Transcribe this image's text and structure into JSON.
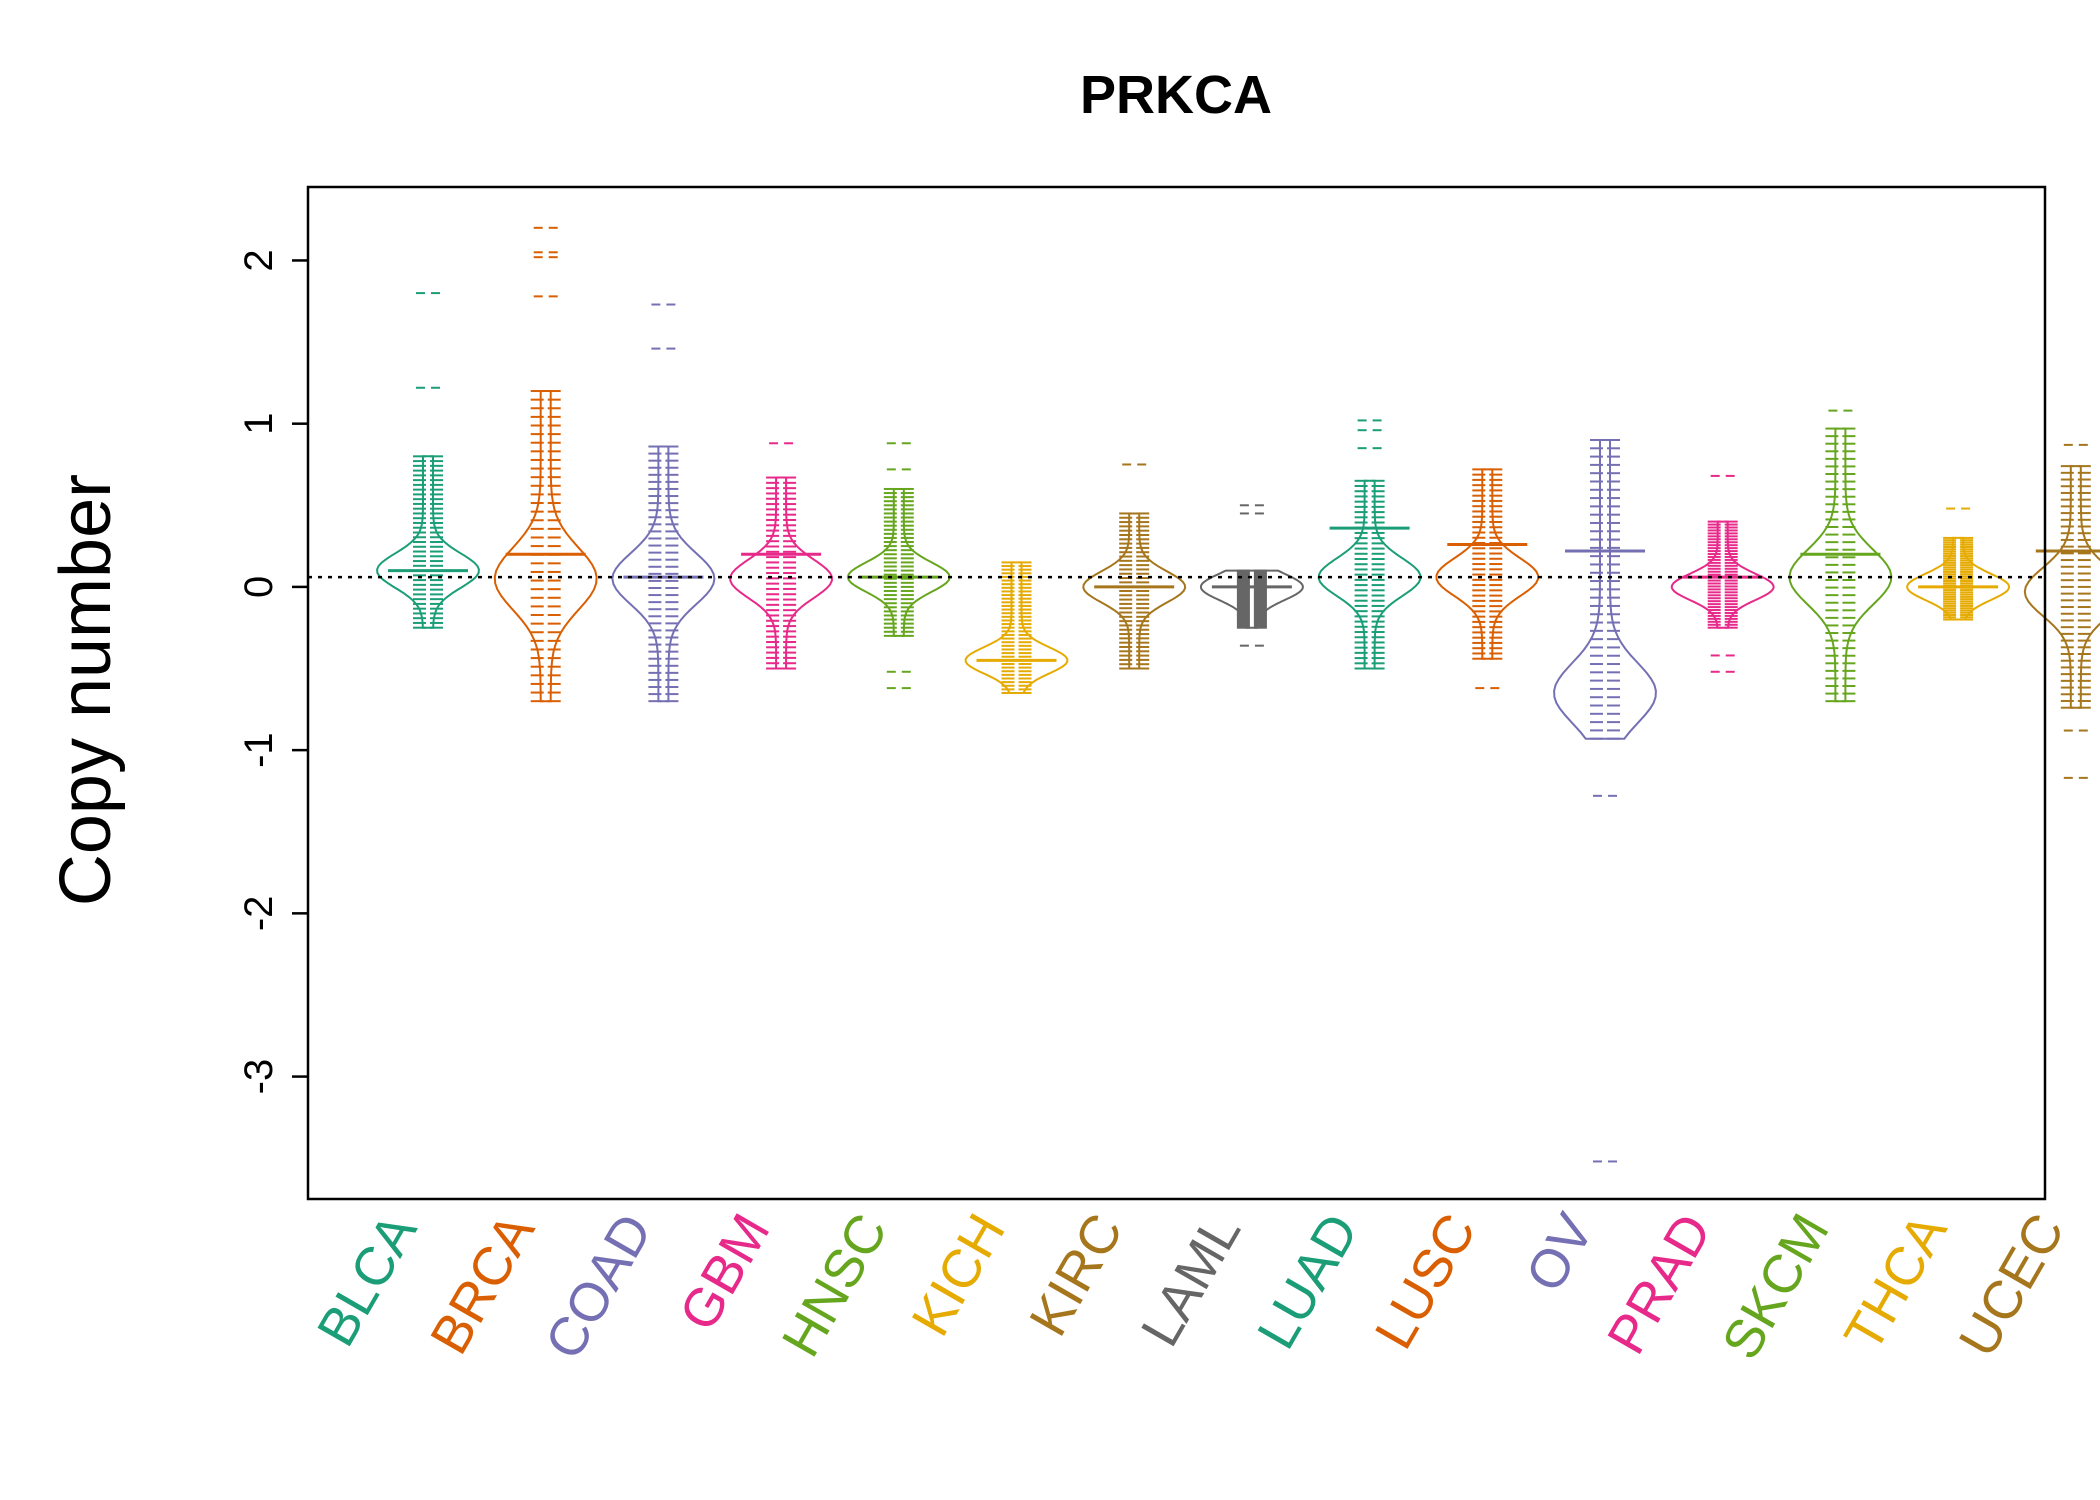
{
  "chart_data": {
    "type": "scatter",
    "subtype": "bean-plot",
    "title": "PRKCA",
    "xlabel": "",
    "ylabel": "Copy number",
    "ylim": [
      -3.75,
      2.45
    ],
    "yticks": [
      2,
      1,
      0,
      -1,
      -2,
      -3
    ],
    "ytick_labels": [
      "2",
      "1",
      "0",
      "-1",
      "-2",
      "-3"
    ],
    "reference_line": 0.06,
    "grid": false,
    "legend": "none",
    "categories": [
      "BLCA",
      "BRCA",
      "COAD",
      "GBM",
      "HNSC",
      "KICH",
      "KIRC",
      "LAML",
      "LUAD",
      "LUSC",
      "OV",
      "PRAD",
      "SKCM",
      "THCA",
      "UCEC"
    ],
    "colors": [
      "#1B9E77",
      "#D95F02",
      "#7570B3",
      "#E7298A",
      "#66A61E",
      "#E6AB02",
      "#A6761D",
      "#666666",
      "#1B9E77",
      "#D95F02",
      "#7570B3",
      "#E7298A",
      "#66A61E",
      "#E6AB02",
      "#A6761D"
    ],
    "series": [
      {
        "group": "BLCA",
        "mean": 0.1,
        "density_peak": 0.1,
        "min": -0.5,
        "max": 1.8,
        "bulk_low": -0.25,
        "bulk_high": 0.8,
        "outliers": [
          1.8,
          1.22
        ]
      },
      {
        "group": "BRCA",
        "mean": 0.2,
        "density_peak": 0.05,
        "min": -0.8,
        "max": 2.2,
        "bulk_low": -0.7,
        "bulk_high": 1.2,
        "outliers": [
          2.2,
          2.05,
          2.02,
          1.78
        ]
      },
      {
        "group": "COAD",
        "mean": 0.06,
        "density_peak": 0.05,
        "min": -0.73,
        "max": 1.73,
        "bulk_low": -0.7,
        "bulk_high": 0.86,
        "outliers": [
          1.73,
          1.46
        ]
      },
      {
        "group": "GBM",
        "mean": 0.2,
        "density_peak": 0.05,
        "min": -0.65,
        "max": 0.88,
        "bulk_low": -0.5,
        "bulk_high": 0.67,
        "outliers": [
          0.88
        ]
      },
      {
        "group": "HNSC",
        "mean": 0.06,
        "density_peak": 0.06,
        "min": -0.62,
        "max": 0.88,
        "bulk_low": -0.3,
        "bulk_high": 0.6,
        "outliers": [
          0.88,
          0.72,
          -0.52,
          -0.62
        ]
      },
      {
        "group": "KICH",
        "mean": -0.45,
        "density_peak": -0.45,
        "min": -0.65,
        "max": 0.15,
        "bulk_low": -0.65,
        "bulk_high": 0.15,
        "outliers": []
      },
      {
        "group": "KIRC",
        "mean": 0.0,
        "density_peak": 0.0,
        "min": -0.5,
        "max": 0.75,
        "bulk_low": -0.5,
        "bulk_high": 0.45,
        "outliers": [
          0.75
        ]
      },
      {
        "group": "LAML",
        "mean": 0.0,
        "density_peak": 0.0,
        "min": -0.36,
        "max": 0.5,
        "bulk_low": -0.25,
        "bulk_high": 0.1,
        "outliers": [
          0.5,
          0.45,
          -0.36
        ]
      },
      {
        "group": "LUAD",
        "mean": 0.36,
        "density_peak": 0.06,
        "min": -0.56,
        "max": 1.02,
        "bulk_low": -0.5,
        "bulk_high": 0.65,
        "outliers": [
          1.02,
          0.96,
          0.85
        ]
      },
      {
        "group": "LUSC",
        "mean": 0.26,
        "density_peak": 0.06,
        "min": -0.62,
        "max": 0.8,
        "bulk_low": -0.44,
        "bulk_high": 0.72,
        "outliers": [
          -0.62
        ]
      },
      {
        "group": "OV",
        "mean": 0.22,
        "density_peak": -0.65,
        "min": -3.52,
        "max": 1.07,
        "bulk_low": -0.93,
        "bulk_high": 0.9,
        "outliers": [
          -1.28,
          -3.52
        ]
      },
      {
        "group": "PRAD",
        "mean": 0.06,
        "density_peak": 0.0,
        "min": -0.52,
        "max": 0.68,
        "bulk_low": -0.25,
        "bulk_high": 0.4,
        "outliers": [
          0.68,
          -0.42,
          -0.52
        ]
      },
      {
        "group": "SKCM",
        "mean": 0.2,
        "density_peak": 0.06,
        "min": -0.7,
        "max": 1.08,
        "bulk_low": -0.7,
        "bulk_high": 0.97,
        "outliers": [
          1.08
        ]
      },
      {
        "group": "THCA",
        "mean": 0.0,
        "density_peak": 0.0,
        "min": -0.2,
        "max": 0.48,
        "bulk_low": -0.2,
        "bulk_high": 0.3,
        "outliers": [
          0.48
        ]
      },
      {
        "group": "UCEC",
        "mean": 0.22,
        "density_peak": -0.03,
        "min": -1.17,
        "max": 0.87,
        "bulk_low": -0.74,
        "bulk_high": 0.74,
        "outliers": [
          0.87,
          -0.88,
          -1.17
        ]
      }
    ]
  }
}
